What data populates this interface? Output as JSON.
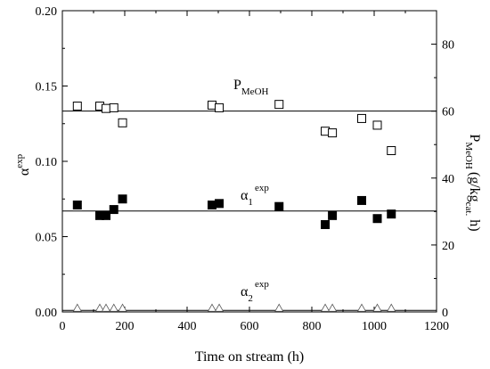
{
  "chart_data": {
    "type": "scatter",
    "xlabel": "Time on stream (h)",
    "ylabel_left": "α",
    "ylabel_left_sup": "exp",
    "ylabel_right": "P",
    "ylabel_right_sub": "MeOH",
    "ylabel_right_unit": "(g/kg",
    "ylabel_right_unit_sub": "cat.",
    "ylabel_right_unit_end": "h)",
    "xlim": [
      0,
      1200
    ],
    "ylim_left": [
      0,
      0.2
    ],
    "ylim_right": [
      0,
      90
    ],
    "x_ticks": [
      "0",
      "200",
      "400",
      "600",
      "800",
      "1000",
      "1200"
    ],
    "y_left_ticks": [
      "0.00",
      "0.05",
      "0.10",
      "0.15",
      "0.20"
    ],
    "y_right_ticks": [
      "0",
      "20",
      "40",
      "60",
      "80"
    ],
    "grid": false,
    "annotations": [
      {
        "main": "P",
        "sub": "MeOH",
        "sup": ""
      },
      {
        "main": "α",
        "sub": "1",
        "sup": "exp"
      },
      {
        "main": "α",
        "sub": "2",
        "sup": "exp"
      }
    ],
    "reference_lines": [
      {
        "axis": "right",
        "y": 60
      },
      {
        "axis": "left",
        "y": 0.067
      },
      {
        "axis": "left",
        "y": 0.001
      }
    ],
    "series": [
      {
        "marker": "open-square",
        "axis": "right",
        "x": [
          48,
          120,
          140,
          165,
          193,
          480,
          503,
          695,
          843,
          866,
          960,
          1010,
          1055
        ],
        "y": [
          61.5,
          61.5,
          60.8,
          61,
          56.5,
          61.8,
          61,
          62,
          54,
          53.5,
          57.8,
          55.8,
          48.2
        ]
      },
      {
        "marker": "filled-square",
        "axis": "left",
        "x": [
          48,
          120,
          140,
          165,
          193,
          480,
          503,
          695,
          843,
          866,
          960,
          1010,
          1055
        ],
        "y": [
          0.071,
          0.064,
          0.064,
          0.068,
          0.075,
          0.071,
          0.072,
          0.07,
          0.058,
          0.064,
          0.074,
          0.062,
          0.065
        ]
      },
      {
        "marker": "open-triangle",
        "axis": "left",
        "x": [
          48,
          120,
          140,
          165,
          193,
          480,
          503,
          695,
          843,
          866,
          960,
          1010,
          1055
        ],
        "y": [
          0.001,
          0.001,
          0.001,
          0.001,
          0.001,
          0.001,
          0.001,
          0.001,
          0.001,
          0.001,
          0.001,
          0.001,
          0.001
        ]
      }
    ]
  }
}
